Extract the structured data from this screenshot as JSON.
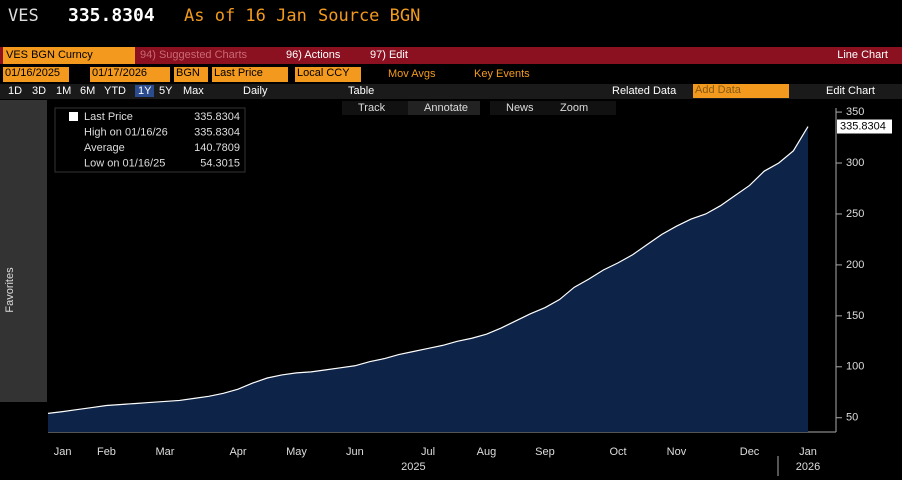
{
  "header": {
    "ticker": "VES",
    "price": "335.8304",
    "as_of": "As of 16 Jan",
    "source": "Source BGN"
  },
  "toolbar1": {
    "security": "VES BGN Curncy",
    "suggested": "94) Suggested Charts",
    "actions": "96) Actions",
    "edit": "97) Edit",
    "chart_type": "Line Chart"
  },
  "toolbar2": {
    "start": "01/16/2025",
    "end": "01/17/2026",
    "source": "BGN",
    "field": "Last Price",
    "currency": "Local CCY",
    "mov_avgs": "Mov Avgs",
    "key_events": "Key Events"
  },
  "toolbar3": {
    "ranges": [
      "1D",
      "3D",
      "1M",
      "6M",
      "YTD",
      "1Y",
      "5Y",
      "Max"
    ],
    "period": "Daily",
    "table": "Table",
    "related": "Related Data",
    "add_data": "Add Data",
    "edit_chart": "Edit Chart"
  },
  "tools": [
    "Track",
    "Annotate",
    "News",
    "Zoom"
  ],
  "sidebar": {
    "favorites": "Favorites"
  },
  "legend": {
    "rows": [
      {
        "label": "Last Price",
        "value": "335.8304"
      },
      {
        "label": "High on 01/16/26",
        "value": "335.8304"
      },
      {
        "label": "Average",
        "value": "140.7809"
      },
      {
        "label": "Low on 01/16/25",
        "value": "54.3015"
      }
    ]
  },
  "chart_data": {
    "type": "area",
    "categories": [
      null,
      "Jan",
      null,
      null,
      "Feb",
      null,
      null,
      null,
      "Mar",
      null,
      null,
      null,
      null,
      "Apr",
      null,
      null,
      null,
      "May",
      null,
      null,
      null,
      "Jun",
      null,
      null,
      null,
      null,
      "Jul",
      null,
      null,
      null,
      "Aug",
      null,
      null,
      null,
      "Sep",
      null,
      null,
      null,
      null,
      "Oct",
      null,
      null,
      null,
      "Nov",
      null,
      null,
      null,
      null,
      "Dec",
      null,
      null,
      null,
      "Jan"
    ],
    "year_labels": [
      "2025",
      "2026"
    ],
    "values": [
      54.3,
      56,
      58,
      60,
      62,
      63,
      64,
      65,
      66,
      67,
      69,
      71,
      74,
      78,
      84,
      89,
      92,
      94,
      95,
      97,
      99,
      101,
      105,
      108,
      112,
      115,
      118,
      121,
      125,
      128,
      132,
      138,
      145,
      152,
      158,
      166,
      178,
      186,
      195,
      202,
      210,
      220,
      230,
      238,
      245,
      250,
      258,
      268,
      278,
      292,
      300,
      312,
      335.83
    ],
    "color": "#0d2347",
    "line_color": "#ffffff",
    "ylim": [
      36,
      354
    ],
    "yticks": [
      50,
      100,
      150,
      200,
      250,
      300,
      350
    ]
  }
}
